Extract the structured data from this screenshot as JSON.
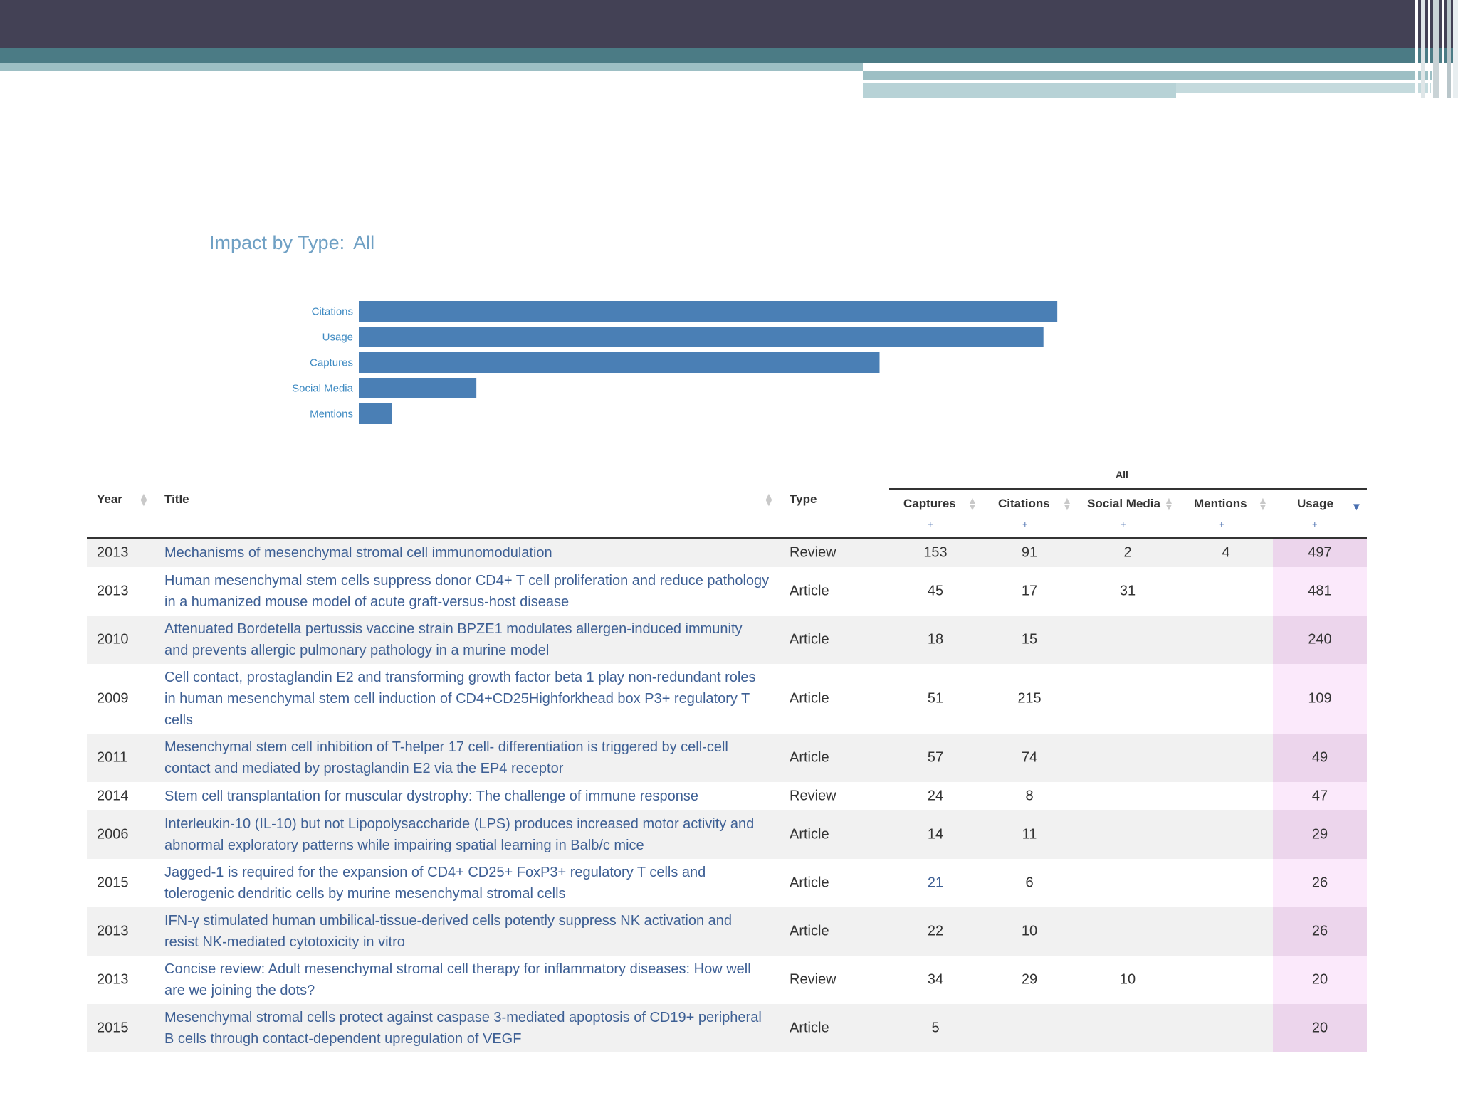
{
  "impact": {
    "title": "Impact by Type:",
    "filter": "All"
  },
  "chart_data": {
    "type": "bar",
    "orientation": "horizontal",
    "categories": [
      "Citations",
      "Usage",
      "Captures",
      "Social Media",
      "Mentions"
    ],
    "values": [
      1010,
      990,
      753,
      170,
      48
    ],
    "xlim": [
      0,
      1050
    ],
    "grid": false,
    "bar_color": "#4a7fb5",
    "label_color": "#3e8ac2"
  },
  "table": {
    "group_header": "All",
    "columns": {
      "year": "Year",
      "title": "Title",
      "type": "Type",
      "captures": "Captures",
      "citations": "Citations",
      "social_media": "Social Media",
      "mentions": "Mentions",
      "usage": "Usage"
    },
    "plus_symbol": "+",
    "sort_up": "▲",
    "sort_down": "▼",
    "sorted_by": "Usage",
    "rows": [
      {
        "year": "2013",
        "title": "Mechanisms of mesenchymal stromal cell immunomodulation",
        "type": "Review",
        "captures": "153",
        "citations": "91",
        "social_media": "2",
        "mentions": "4",
        "usage": "497"
      },
      {
        "year": "2013",
        "title": "Human mesenchymal stem cells suppress donor CD4+ T cell proliferation and reduce pathology in a humanized mouse model of acute graft-versus-host disease",
        "type": "Article",
        "captures": "45",
        "citations": "17",
        "social_media": "31",
        "mentions": "",
        "usage": "481"
      },
      {
        "year": "2010",
        "title": "Attenuated Bordetella pertussis vaccine strain BPZE1 modulates allergen-induced immunity and prevents allergic pulmonary pathology in a murine model",
        "type": "Article",
        "captures": "18",
        "citations": "15",
        "social_media": "",
        "mentions": "",
        "usage": "240"
      },
      {
        "year": "2009",
        "title": "Cell contact, prostaglandin E2 and transforming growth factor beta 1 play non-redundant roles in human mesenchymal stem cell induction of CD4+CD25Highforkhead box P3+ regulatory T cells",
        "type": "Article",
        "captures": "51",
        "citations": "215",
        "social_media": "",
        "mentions": "",
        "usage": "109"
      },
      {
        "year": "2011",
        "title": "Mesenchymal stem cell inhibition of T-helper 17 cell- differentiation is triggered by cell-cell contact and mediated by prostaglandin E2 via the EP4 receptor",
        "type": "Article",
        "captures": "57",
        "citations": "74",
        "social_media": "",
        "mentions": "",
        "usage": "49"
      },
      {
        "year": "2014",
        "title": "Stem cell transplantation for muscular dystrophy: The challenge of immune response",
        "type": "Review",
        "captures": "24",
        "citations": "8",
        "social_media": "",
        "mentions": "",
        "usage": "47"
      },
      {
        "year": "2006",
        "title": "Interleukin-10 (IL-10) but not Lipopolysaccharide (LPS) produces increased motor activity and abnormal exploratory patterns while impairing spatial learning in Balb/c mice",
        "type": "Article",
        "captures": "14",
        "citations": "11",
        "social_media": "",
        "mentions": "",
        "usage": "29"
      },
      {
        "year": "2015",
        "title": "Jagged-1 is required for the expansion of CD4+ CD25+ FoxP3+ regulatory T cells and tolerogenic dendritic cells by murine mesenchymal stromal cells",
        "type": "Article",
        "captures": "21",
        "citations": "6",
        "social_media": "",
        "mentions": "",
        "usage": "26"
      },
      {
        "year": "2013",
        "title": "IFN-γ stimulated human umbilical-tissue-derived cells potently suppress NK activation and resist NK-mediated cytotoxicity in vitro",
        "type": "Article",
        "captures": "22",
        "citations": "10",
        "social_media": "",
        "mentions": "",
        "usage": "26"
      },
      {
        "year": "2013",
        "title": "Concise review: Adult mesenchymal stromal cell therapy for inflammatory diseases: How well are we joining the dots?",
        "type": "Review",
        "captures": "34",
        "citations": "29",
        "social_media": "10",
        "mentions": "",
        "usage": "20"
      },
      {
        "year": "2015",
        "title": "Mesenchymal stromal cells protect against caspase 3-mediated apoptosis of CD19+ peripheral B cells through contact-dependent upregulation of VEGF",
        "type": "Article",
        "captures": "5",
        "citations": "",
        "social_media": "",
        "mentions": "",
        "usage": "20"
      }
    ]
  }
}
